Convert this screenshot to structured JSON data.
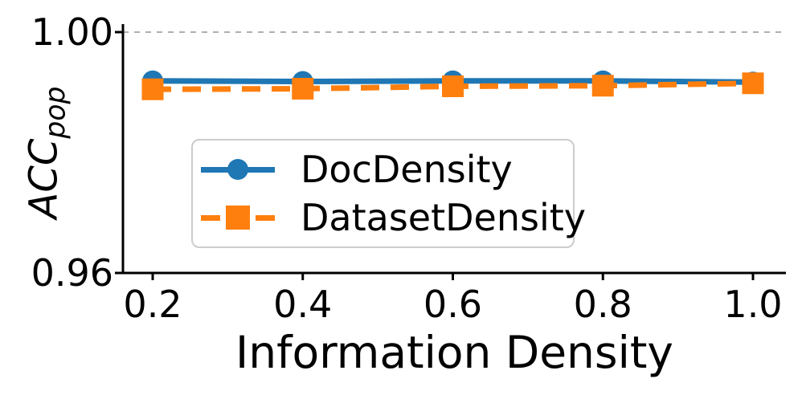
{
  "figure": {
    "background_color": "#ffffff",
    "axis_color": "#000000"
  },
  "chart_data": {
    "type": "line",
    "title": "",
    "xlabel": "Information Density",
    "ylabel": "ACC_pop",
    "ylabel_main": "ACC",
    "ylabel_sub": "pop",
    "x": [
      0.2,
      0.4,
      0.6,
      0.8,
      1.0
    ],
    "x_tick_labels": [
      "0.2",
      "0.4",
      "0.6",
      "0.8",
      "1.0"
    ],
    "y_ticks": [
      {
        "value": 1.0,
        "label": "1.00"
      },
      {
        "value": 0.96,
        "label": "0.96"
      }
    ],
    "xlim": [
      0.16,
      1.05
    ],
    "ylim": [
      0.96,
      1.0013
    ],
    "grid": {
      "y_values": [
        1.0
      ],
      "style": "dashed",
      "color": "#b0b0b0"
    },
    "legend": {
      "position": "lower-center-left",
      "border_color": "#cccccc"
    },
    "series": [
      {
        "name": "DocDensity",
        "color": "#1f77b4",
        "line_style": "solid",
        "marker": "circle",
        "values": [
          0.9919,
          0.9918,
          0.9919,
          0.9919,
          0.9917
        ]
      },
      {
        "name": "DatasetDensity",
        "color": "#ff7f0e",
        "line_style": "dashed",
        "marker": "square",
        "values": [
          0.9905,
          0.9906,
          0.991,
          0.9911,
          0.9915
        ]
      }
    ]
  }
}
